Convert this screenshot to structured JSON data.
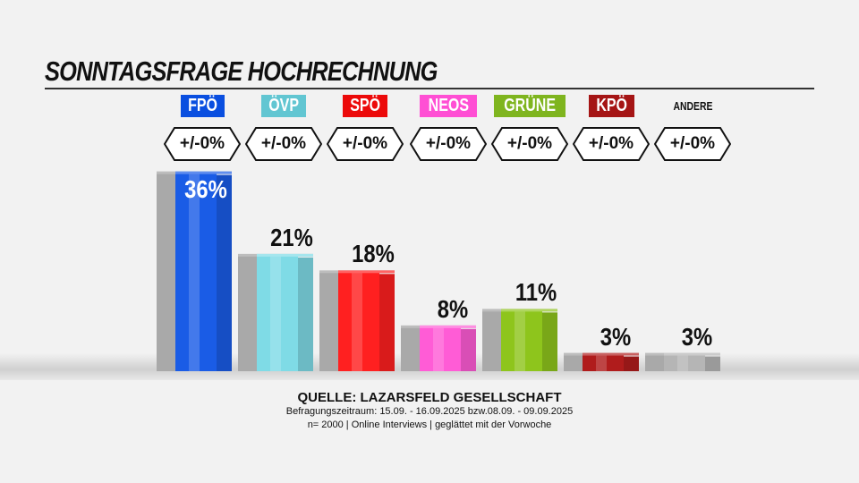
{
  "header": {
    "title": "SONNTAGSFRAGE HOCHRECHNUNG"
  },
  "chart_data": {
    "type": "bar",
    "title": "SONNTAGSFRAGE HOCHRECHNUNG",
    "categories": [
      "FPÖ",
      "ÖVP",
      "SPÖ",
      "NEOS",
      "GRÜNE",
      "KPÖ",
      "ANDERE"
    ],
    "series": [
      {
        "values": [
          36,
          21,
          18,
          8,
          11,
          3,
          3
        ]
      }
    ],
    "value_labels": [
      "36%",
      "21%",
      "18%",
      "8%",
      "11%",
      "3%",
      "3%"
    ],
    "changes": [
      "+/-0%",
      "+/-0%",
      "+/-0%",
      "+/-0%",
      "+/-0%",
      "+/-0%",
      "+/-0%"
    ],
    "colors": [
      "#1a5ce6",
      "#7fdbe6",
      "#ff2020",
      "#ff5cd6",
      "#8ec51c",
      "#b01c1c",
      "#b5b5b5"
    ],
    "badge_colors": [
      "#0a4fe0",
      "#62c6d2",
      "#ec0a0a",
      "#ff4fd4",
      "#7fb51f",
      "#a51515",
      ""
    ],
    "previous_values": [
      36,
      21,
      18,
      8,
      11,
      3,
      3
    ],
    "ylim": [
      0,
      36
    ]
  },
  "footer": {
    "source": "QUELLE: LAZARSFELD GESELLSCHAFT",
    "period": "Befragungszeitraum:  15.09. - 16.09.2025  bzw.08.09. - 09.09.2025",
    "note": "n= 2000 | Online Interviews | geglättet mit der Vorwoche"
  }
}
